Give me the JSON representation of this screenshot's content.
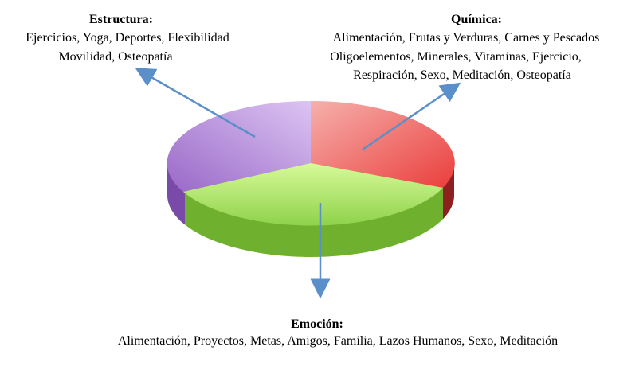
{
  "nodes": [
    {
      "title": "Estructura:",
      "lines": [
        "Ejercicios, Yoga, Deportes, Flexibilidad",
        "Movilidad, Osteopatía"
      ]
    },
    {
      "title": "Química:",
      "lines": [
        "Alimentación, Frutas y Verduras, Carnes y Pescados",
        "Oligoelementos, Minerales, Vitaminas, Ejercicio,",
        "Respiración, Sexo, Meditación, Osteopatía"
      ]
    },
    {
      "title": "Emoción:",
      "lines": [
        "Alimentación, Proyectos, Metas, Amigos, Familia, Lazos Humanos, Sexo, Meditación"
      ]
    }
  ]
}
